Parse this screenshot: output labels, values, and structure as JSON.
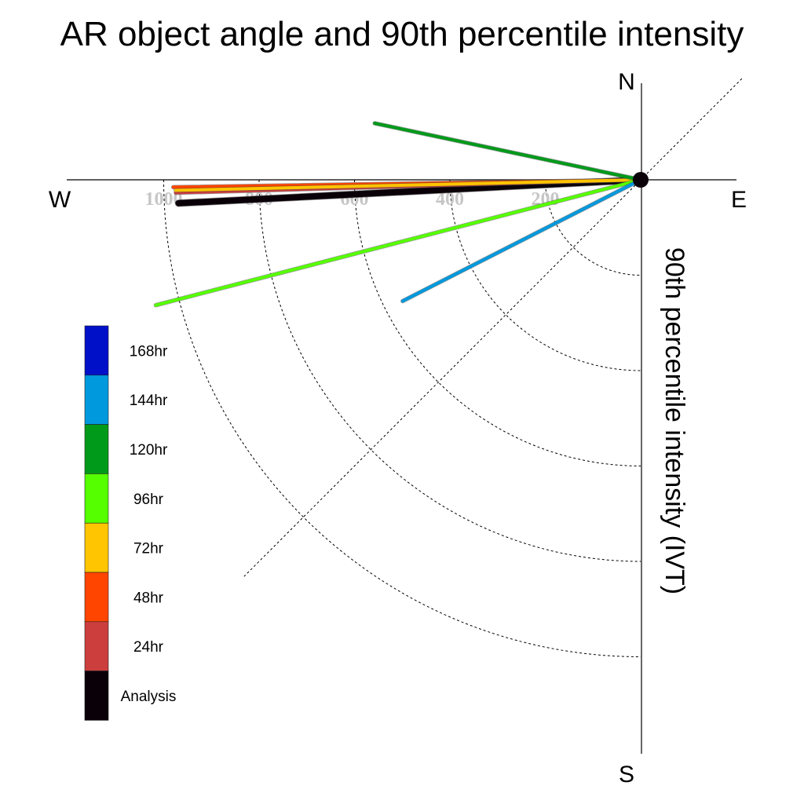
{
  "chart_data": {
    "type": "polar",
    "title": "AR object angle and 90th percentile intensity",
    "ylabel": "90th percentile intensity (IVT)",
    "compass": {
      "north": "N",
      "south": "S",
      "east": "E",
      "west": "W"
    },
    "radial_ticks": [
      "200",
      "400",
      "600",
      "800",
      "1000"
    ],
    "radial_tick_values": [
      200,
      400,
      600,
      800,
      1000
    ],
    "rlim": [
      0,
      1200
    ],
    "angle_convention": "degrees counterclockwise from east",
    "grid": true,
    "legend_position": "left",
    "series": [
      {
        "name": "168hr",
        "color": "#0010c8",
        "angle": null,
        "intensity": null
      },
      {
        "name": "144hr",
        "color": "#0099dd",
        "angle": 207,
        "intensity": 560
      },
      {
        "name": "120hr",
        "color": "#009a1a",
        "angle": 168,
        "intensity": 570
      },
      {
        "name": "96hr",
        "color": "#55ff00",
        "angle": 194.5,
        "intensity": 1050
      },
      {
        "name": "72hr",
        "color": "#ffc500",
        "angle": 181.3,
        "intensity": 975
      },
      {
        "name": "48hr",
        "color": "#ff4500",
        "angle": 180.9,
        "intensity": 980
      },
      {
        "name": "24hr",
        "color": "#cc3e3e",
        "angle": 181.6,
        "intensity": 975
      },
      {
        "name": "Analysis",
        "color": "#0a0008",
        "angle": 182.9,
        "intensity": 970
      }
    ]
  }
}
